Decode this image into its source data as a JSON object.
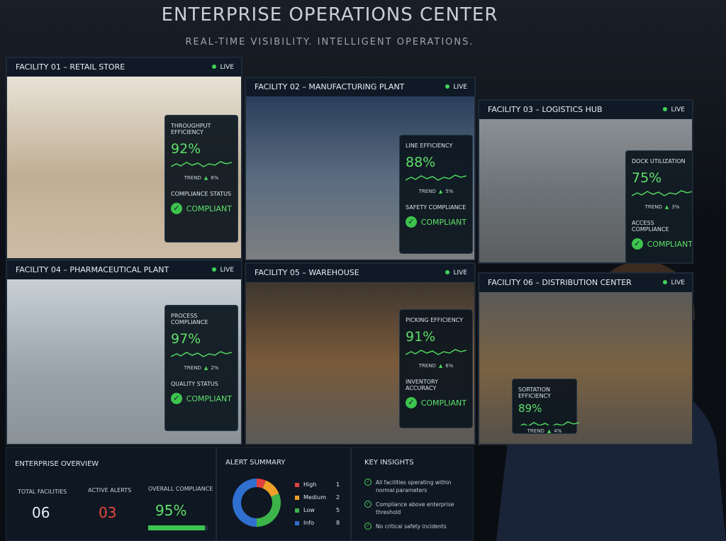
{
  "header": {
    "title": "ENTERPRISE OPERATIONS CENTER",
    "subtitle": "REAL-TIME VISIBILITY. INTELLIGENT OPERATIONS."
  },
  "facilities": [
    {
      "name": "FACILITY 01 – RETAIL STORE",
      "live": "LIVE",
      "metric": "THROUGHPUT EFFICIENCY",
      "value": "92%",
      "trend_label": "TREND",
      "trend": "8%",
      "status_label": "COMPLIANCE STATUS",
      "status": "COMPLIANT"
    },
    {
      "name": "FACILITY 02 – MANUFACTURING PLANT",
      "live": "LIVE",
      "metric": "LINE EFFICIENCY",
      "value": "88%",
      "trend_label": "TREND",
      "trend": "5%",
      "status_label": "SAFETY COMPLIANCE",
      "status": "COMPLIANT"
    },
    {
      "name": "FACILITY 03 – LOGISTICS HUB",
      "live": "LIVE",
      "metric": "DOCK UTILIZATION",
      "value": "75%",
      "trend_label": "TREND",
      "trend": "3%",
      "status_label": "ACCESS COMPLIANCE",
      "status": "COMPLIANT"
    },
    {
      "name": "FACILITY 04 – PHARMACEUTICAL PLANT",
      "live": "LIVE",
      "metric": "PROCESS COMPLIANCE",
      "value": "97%",
      "trend_label": "TREND",
      "trend": "2%",
      "status_label": "QUALITY STATUS",
      "status": "COMPLIANT"
    },
    {
      "name": "FACILITY 05 – WAREHOUSE",
      "live": "LIVE",
      "metric": "PICKING EFFICIENCY",
      "value": "91%",
      "trend_label": "TREND",
      "trend": "6%",
      "status_label": "INVENTORY ACCURACY",
      "status": "COMPLIANT"
    },
    {
      "name": "FACILITY 06 – DISTRIBUTION CENTER",
      "live": "LIVE",
      "metric": "SORTATION EFFICIENCY",
      "value": "89%",
      "trend_label": "TREND",
      "trend": "4%"
    }
  ],
  "overview": {
    "title": "ENTERPRISE OVERVIEW",
    "total_label": "TOTAL FACILITIES",
    "total": "06",
    "alerts_label": "ACTIVE ALERTS",
    "alerts": "03",
    "compliance_label": "OVERALL COMPLIANCE",
    "compliance": 95,
    "compliance_label_value": "95%"
  },
  "alerts": {
    "title": "ALERT SUMMARY",
    "items": [
      {
        "name": "High",
        "count": 1,
        "color": "#e04040"
      },
      {
        "name": "Medium",
        "count": 2,
        "color": "#f0a028"
      },
      {
        "name": "Low",
        "count": 5,
        "color": "#3cb44a"
      },
      {
        "name": "Info",
        "count": 8,
        "color": "#2f6fd0"
      }
    ]
  },
  "insights": {
    "title": "KEY INSIGHTS",
    "items": [
      "All facilities operating within normal parameters",
      "Compliance above enterprise threshold",
      "No critical safety incidents"
    ]
  }
}
